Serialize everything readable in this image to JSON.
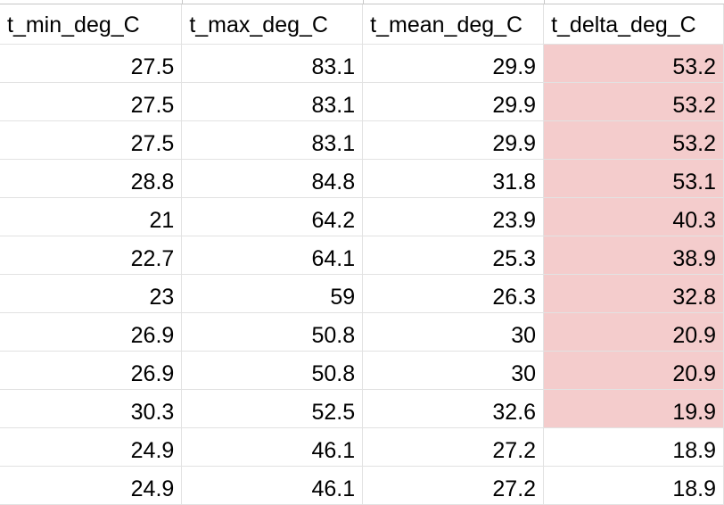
{
  "sheet": {
    "headers": [
      "t_min_deg_C",
      "t_max_deg_C",
      "t_mean_deg_C",
      "t_delta_deg_C"
    ],
    "rows": [
      [
        "27.5",
        "83.1",
        "29.9",
        "53.2"
      ],
      [
        "27.5",
        "83.1",
        "29.9",
        "53.2"
      ],
      [
        "27.5",
        "83.1",
        "29.9",
        "53.2"
      ],
      [
        "28.8",
        "84.8",
        "31.8",
        "53.1"
      ],
      [
        "21",
        "64.2",
        "23.9",
        "40.3"
      ],
      [
        "22.7",
        "64.1",
        "25.3",
        "38.9"
      ],
      [
        "23",
        "59",
        "26.3",
        "32.8"
      ],
      [
        "26.9",
        "50.8",
        "30",
        "20.9"
      ],
      [
        "26.9",
        "50.8",
        "30",
        "20.9"
      ],
      [
        "30.3",
        "52.5",
        "32.6",
        "19.9"
      ],
      [
        "24.9",
        "46.1",
        "27.2",
        "18.9"
      ],
      [
        "24.9",
        "46.1",
        "27.2",
        "18.9"
      ]
    ],
    "highlight_column": 3,
    "highlight_rows": 10,
    "highlight_color": "#f4cccc",
    "gridline_color": "#e2e2e2"
  }
}
